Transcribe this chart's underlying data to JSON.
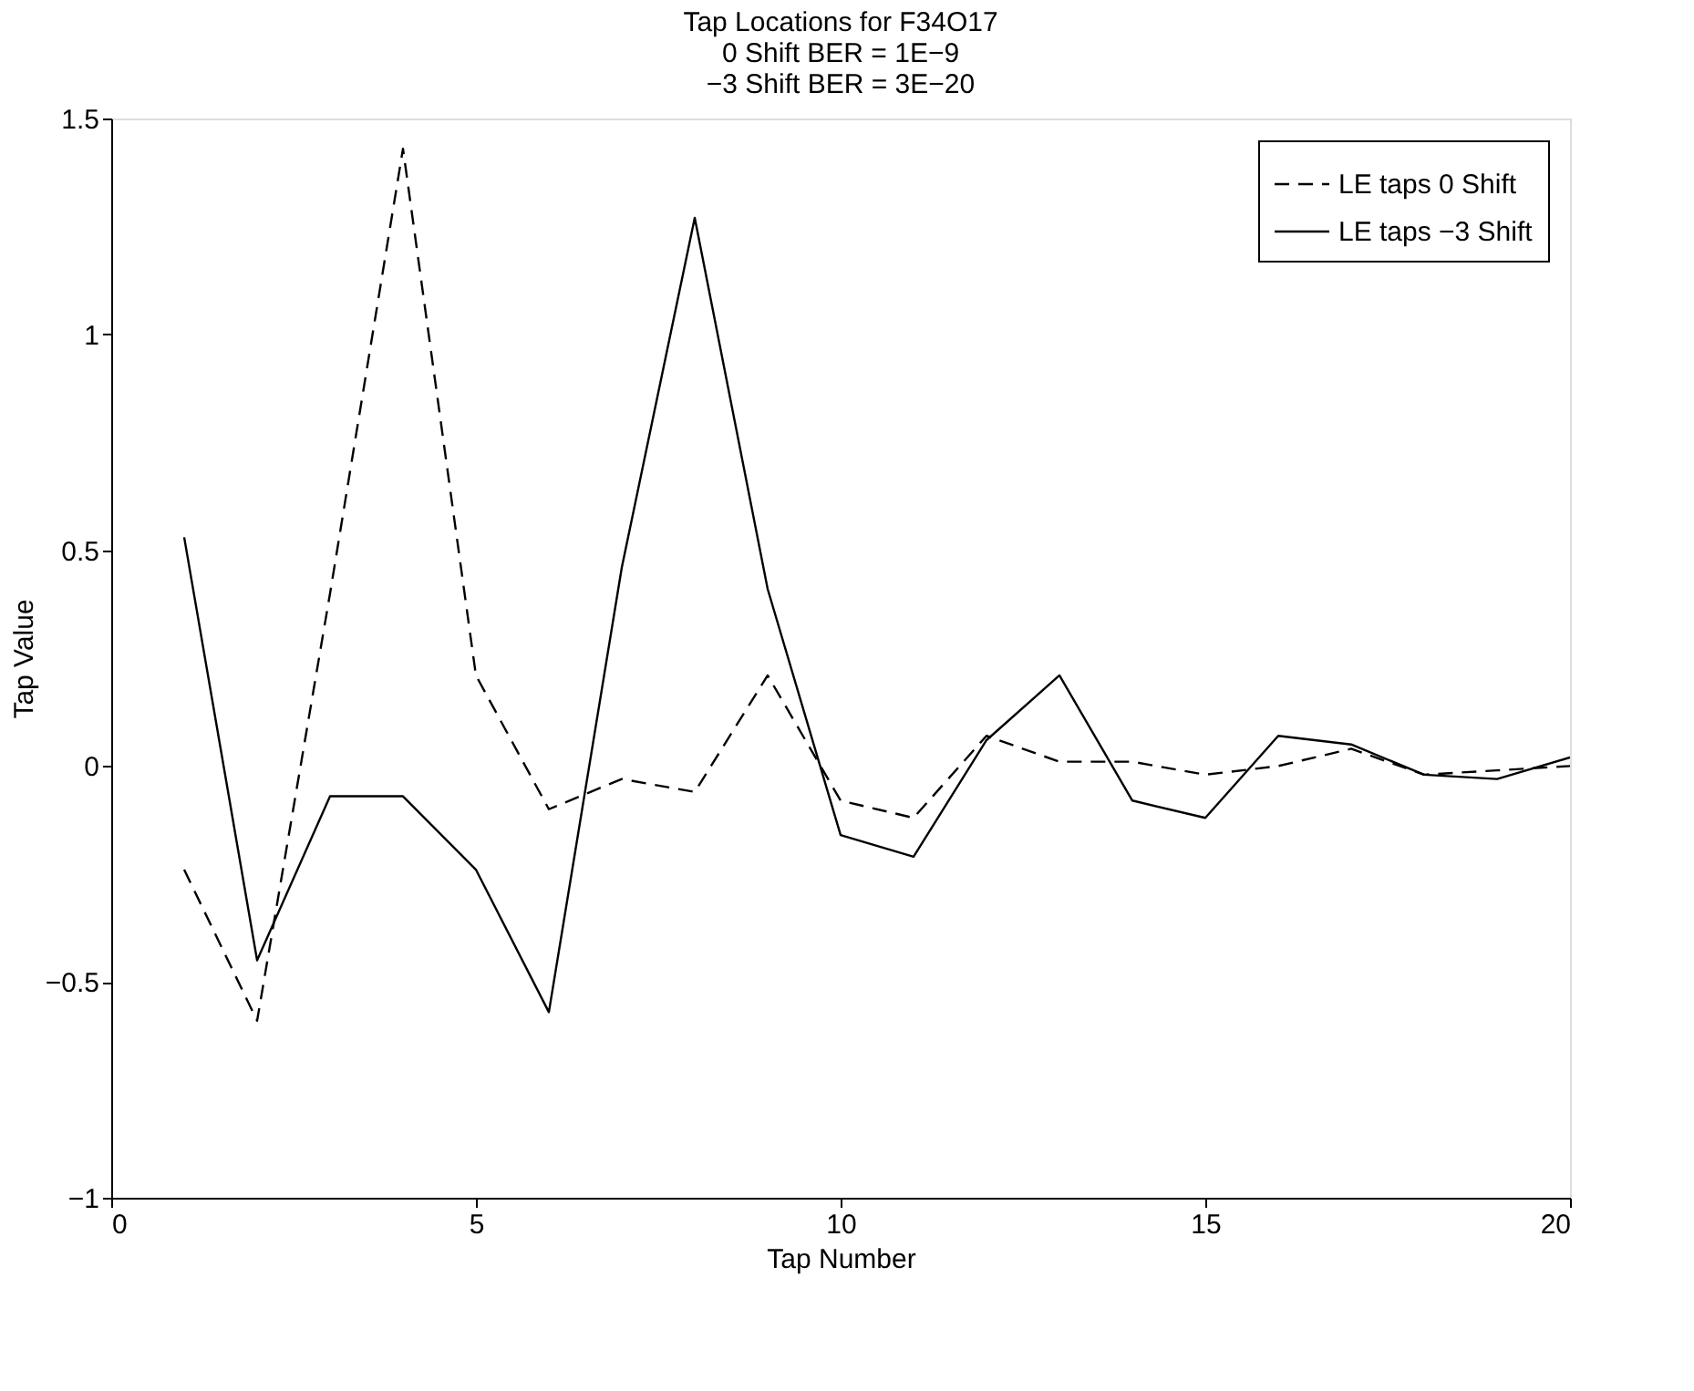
{
  "chart_data": {
    "type": "line",
    "title": [
      "Tap Locations for F34O17",
      "0 Shift BER = 1E−9",
      "−3 Shift BER = 3E−20"
    ],
    "xlabel": "Tap Number",
    "ylabel": "Tap Value",
    "x": [
      1,
      2,
      3,
      4,
      5,
      6,
      7,
      8,
      9,
      10,
      11,
      12,
      13,
      14,
      15,
      16,
      17,
      18,
      19,
      20
    ],
    "series": [
      {
        "name": "LE taps 0 Shift",
        "color": "#000000",
        "line_style": "dashed",
        "values": [
          -0.24,
          -0.59,
          0.4,
          1.43,
          0.21,
          -0.1,
          -0.03,
          -0.06,
          0.21,
          -0.08,
          -0.12,
          0.07,
          0.01,
          0.01,
          -0.02,
          0.0,
          0.04,
          -0.02,
          -0.01,
          0.0
        ]
      },
      {
        "name": "LE taps −3 Shift",
        "color": "#000000",
        "line_style": "solid",
        "values": [
          0.53,
          -0.45,
          -0.07,
          -0.07,
          -0.24,
          -0.57,
          0.46,
          1.27,
          0.41,
          -0.16,
          -0.21,
          0.06,
          0.21,
          -0.08,
          -0.12,
          0.07,
          0.05,
          -0.02,
          -0.03,
          0.02
        ]
      }
    ],
    "xlim": [
      0,
      20
    ],
    "xticks": [
      0,
      5,
      10,
      15,
      20
    ],
    "ylim": [
      -1,
      1.5
    ],
    "yticks": [
      {
        "value": -1,
        "label": "−1"
      },
      {
        "value": -0.5,
        "label": "−0.5"
      },
      0,
      0.5,
      1,
      1.5
    ],
    "grid": false,
    "legend": "top right",
    "marker": "none"
  }
}
